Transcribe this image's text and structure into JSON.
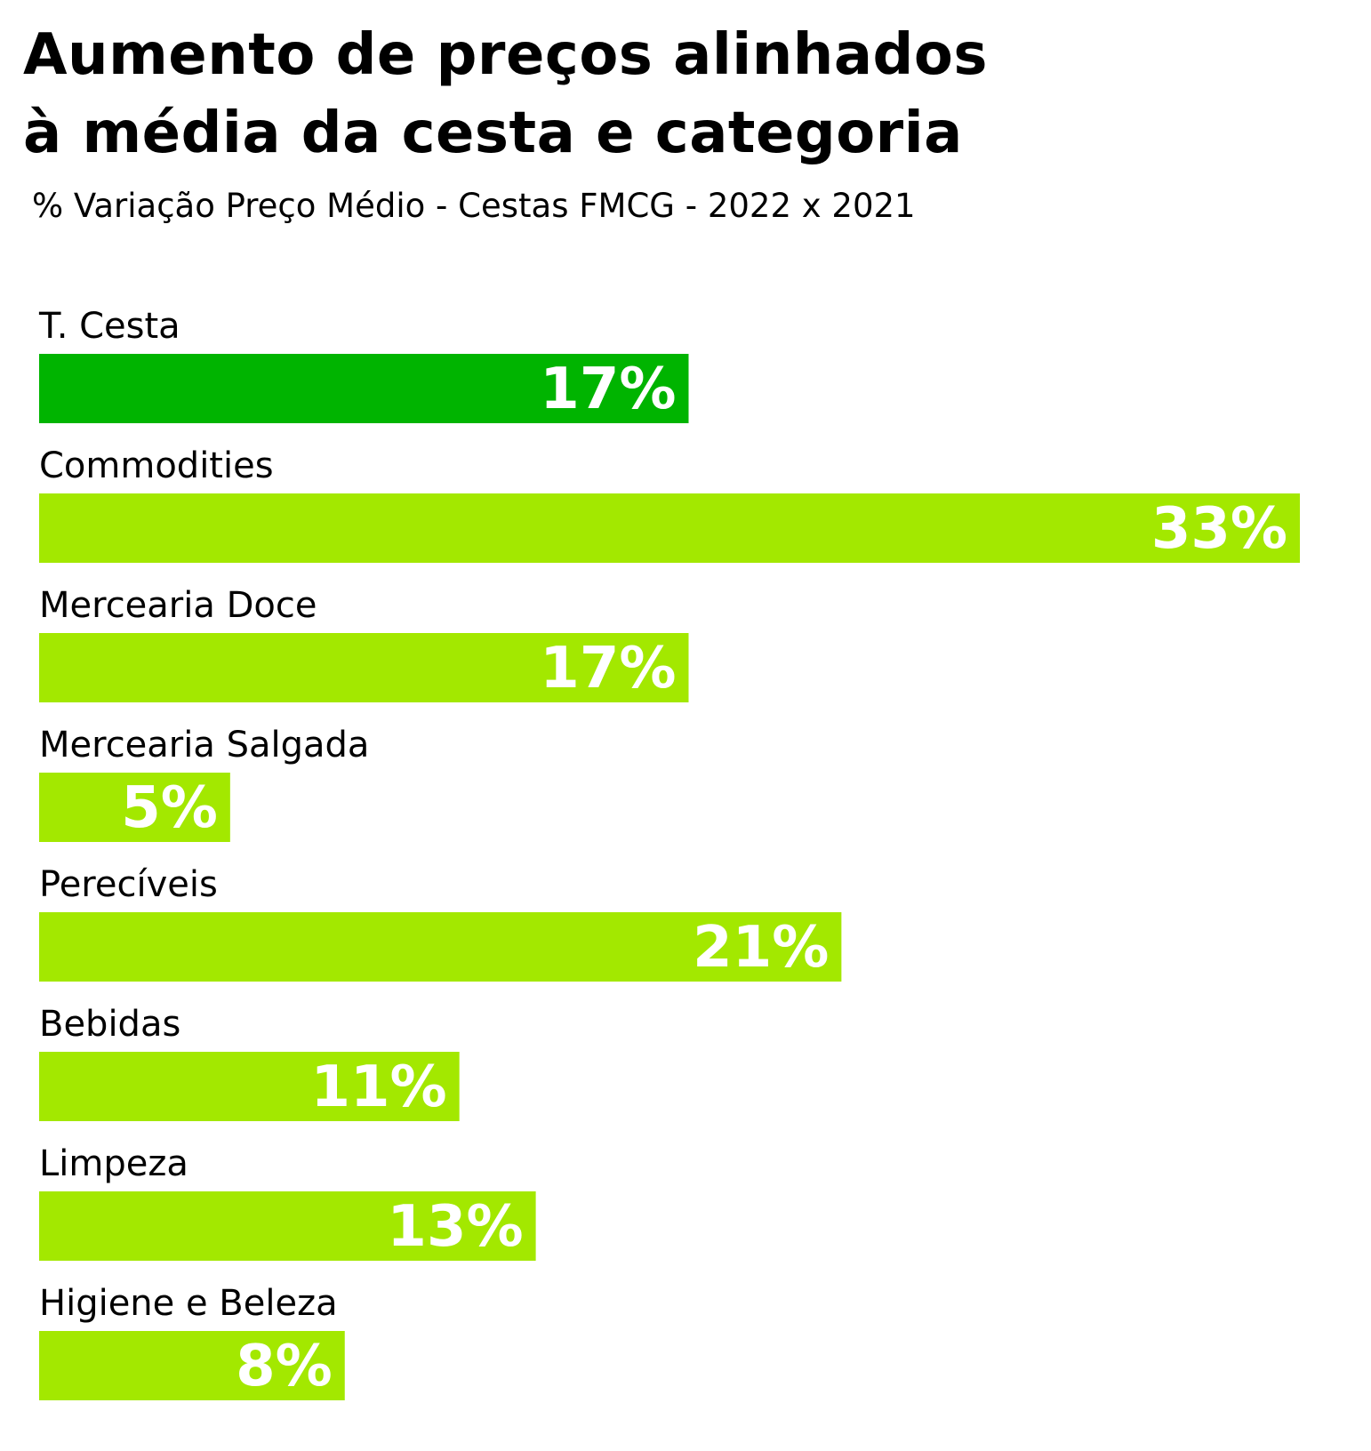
{
  "title": "Aumento de preços alinhados\nà média da cesta e categoria",
  "subtitle": "% Variação Preço Médio - Cestas FMCG - 2022 x 2021",
  "colors": {
    "highlight": "#00b400",
    "bar": "#a3e800",
    "value_text": "#ffffff",
    "label_text": "#000000"
  },
  "chart_data": {
    "type": "bar",
    "orientation": "horizontal",
    "title": "Aumento de preços alinhados à média da cesta e categoria",
    "subtitle": "% Variação Preço Médio - Cestas FMCG - 2022 x 2021",
    "categories": [
      "T. Cesta",
      "Commodities",
      "Mercearia Doce",
      "Mercearia Salgada",
      "Perecíveis",
      "Bebidas",
      "Limpeza",
      "Higiene e Beleza"
    ],
    "values": [
      17,
      33,
      17,
      5,
      21,
      11,
      13,
      8
    ],
    "value_labels": [
      "17%",
      "33%",
      "17%",
      "5%",
      "21%",
      "11%",
      "13%",
      "8%"
    ],
    "unit": "%",
    "highlight_category": "T. Cesta",
    "xlabel": "",
    "ylabel": "",
    "xlim": [
      0,
      33
    ],
    "grid": false,
    "legend": false
  }
}
